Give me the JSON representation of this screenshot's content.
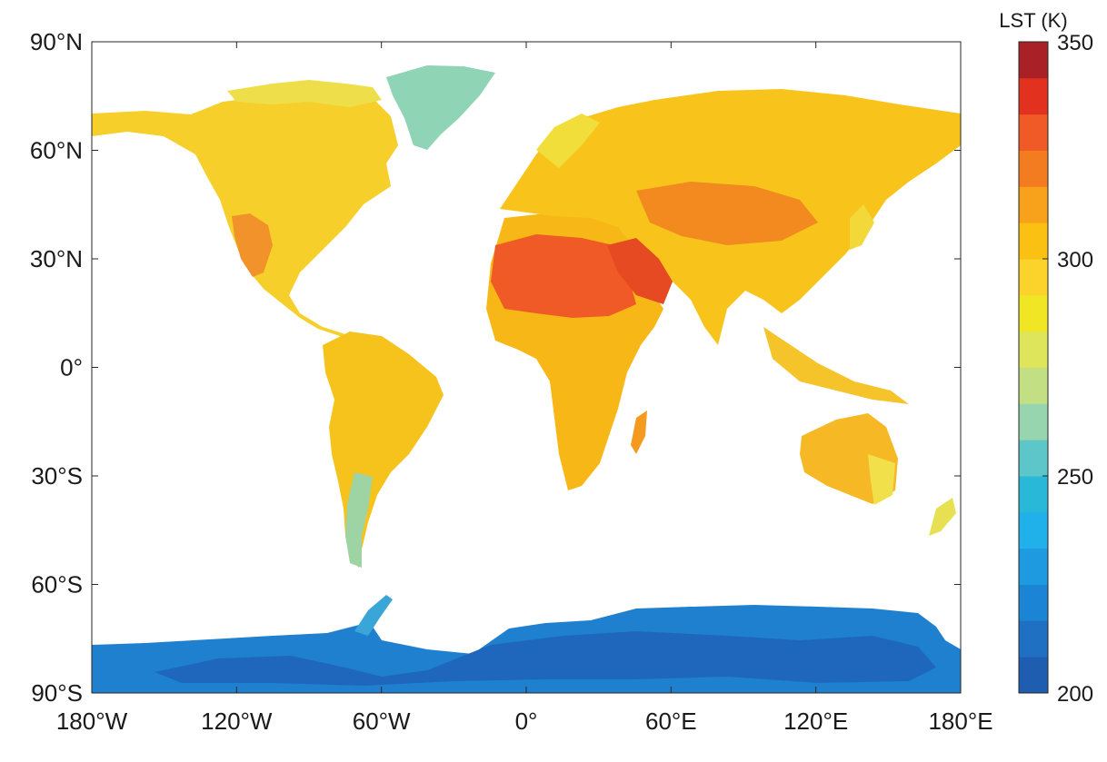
{
  "map": {
    "type": "choropleth",
    "projection": "equirectangular",
    "longitude_range": [
      -180,
      180
    ],
    "latitude_range": [
      -90,
      90
    ]
  },
  "axes": {
    "lon_ticks": [
      {
        "value": -180,
        "label": "180°W"
      },
      {
        "value": -120,
        "label": "120°W"
      },
      {
        "value": -60,
        "label": "60°W"
      },
      {
        "value": 0,
        "label": "0°"
      },
      {
        "value": 60,
        "label": "60°E"
      },
      {
        "value": 120,
        "label": "120°E"
      },
      {
        "value": 180,
        "label": "180°E"
      }
    ],
    "lat_ticks": [
      {
        "value": 90,
        "label": "90°N"
      },
      {
        "value": 60,
        "label": "60°N"
      },
      {
        "value": 30,
        "label": "30°N"
      },
      {
        "value": 0,
        "label": "0°"
      },
      {
        "value": -30,
        "label": "30°S"
      },
      {
        "value": -60,
        "label": "60°S"
      },
      {
        "value": -90,
        "label": "90°S"
      }
    ]
  },
  "colorbar": {
    "title": "LST (K)",
    "min": 200,
    "max": 350,
    "ticks": [
      {
        "value": 200,
        "label": "200"
      },
      {
        "value": 250,
        "label": "250"
      },
      {
        "value": 300,
        "label": "300"
      },
      {
        "value": 350,
        "label": "350"
      }
    ],
    "colors": [
      "#1f5db0",
      "#1f6fc2",
      "#1c84d4",
      "#1d9ae0",
      "#20b0ea",
      "#2ab8d8",
      "#5cc6c8",
      "#96d5ae",
      "#c2df83",
      "#dfe55a",
      "#f0e623",
      "#fcd32b",
      "#fbc112",
      "#f8a21c",
      "#f47c20",
      "#ef5a26",
      "#e2321f",
      "#a92127"
    ]
  },
  "regions": [
    {
      "name": "Greenland",
      "lst": 255
    },
    {
      "name": "Antarctica",
      "lst": 225
    },
    {
      "name": "Sahara",
      "lst": 325
    },
    {
      "name": "Arabian Peninsula",
      "lst": 330
    },
    {
      "name": "Australia",
      "lst": 310
    },
    {
      "name": "South America",
      "lst": 300
    },
    {
      "name": "North America",
      "lst": 295
    },
    {
      "name": "Eurasia",
      "lst": 300
    }
  ]
}
